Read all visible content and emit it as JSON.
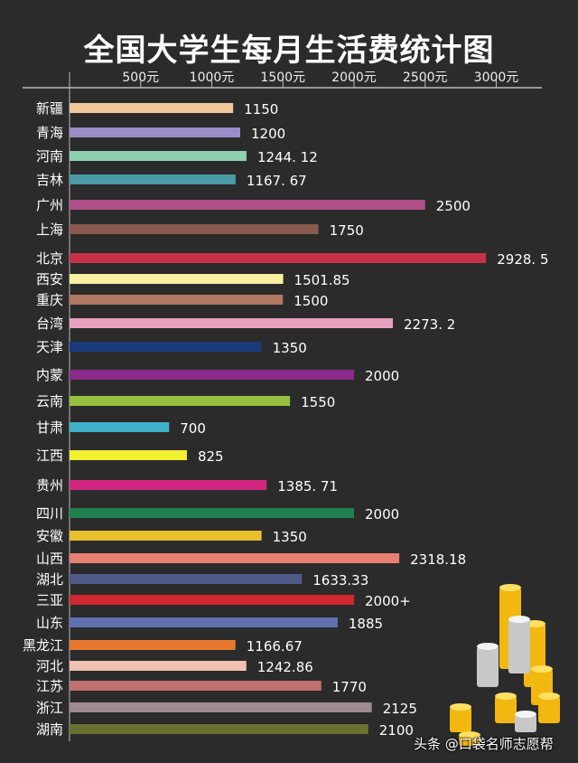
{
  "chart_data": {
    "type": "bar",
    "orientation": "horizontal",
    "title": "全国大学生每月生活费统计图",
    "xlabel": "",
    "ylabel": "",
    "xlim": [
      0,
      3250
    ],
    "axis_position": "top",
    "grid": false,
    "tick_labels": [
      "500元",
      "1000元",
      "1500元",
      "2000元",
      "2500元",
      "3000元"
    ],
    "ticks": [
      500,
      1000,
      1500,
      2000,
      2500,
      3000
    ],
    "categories": [
      "新疆",
      "青海",
      "河南",
      "吉林",
      "广州",
      "上海",
      "北京",
      "西安",
      "重庆",
      "台湾",
      "天津",
      "内蒙",
      "云南",
      "甘肃",
      "江西",
      "贵州",
      "四川",
      "安徽",
      "山西",
      "湖北",
      "三亚",
      "山东",
      "黑龙江",
      "河北",
      "江苏",
      "浙江",
      "湖南"
    ],
    "values": [
      1150,
      1200,
      1244.12,
      1167.67,
      2500,
      1750,
      2928.5,
      1501.85,
      1500,
      2273.2,
      1350,
      2000,
      1550,
      700,
      825,
      1385.71,
      2000,
      1350,
      2318.18,
      1633.33,
      2000,
      1885,
      1166.67,
      1242.86,
      1770,
      2125,
      2100
    ],
    "data_labels": [
      "1150",
      "1200",
      "1244. 12",
      "1167. 67",
      "2500",
      "1750",
      "2928. 5",
      "1501.85",
      "1500",
      "2273. 2",
      "1350",
      "2000",
      "1550",
      "700",
      "825",
      "1385. 71",
      "2000",
      "1350",
      "2318.18",
      "1633.33",
      "2000+",
      "1885",
      "1166.67",
      "1242.86",
      "1770",
      "2125",
      "2100"
    ],
    "colors": [
      "#f2c79a",
      "#9a8cc8",
      "#8fd0b0",
      "#4a9aa8",
      "#b0508a",
      "#8a5a50",
      "#c8304a",
      "#f8f0a0",
      "#b07860",
      "#e8a0c0",
      "#1a3a7a",
      "#8a2a8a",
      "#98c040",
      "#40b0c8",
      "#f0f030",
      "#d02880",
      "#208050",
      "#e8c030",
      "#e88070",
      "#505a88",
      "#d02830",
      "#6070b0",
      "#e87830",
      "#f0c0b0",
      "#c07070",
      "#a08890",
      "#6a7030"
    ]
  },
  "watermark": "头条 @口袋名师志愿帮"
}
